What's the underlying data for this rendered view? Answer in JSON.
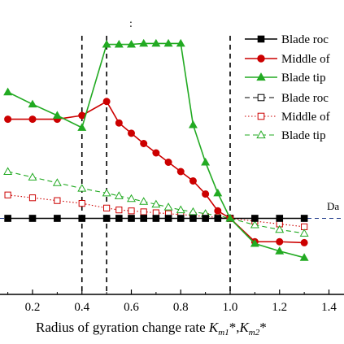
{
  "chart_data": {
    "type": "line",
    "title_mark": ":",
    "xlabel_main": "Radius of gyration change rate ",
    "xlabel_math": "K",
    "xlabel_sub1": "m1",
    "xlabel_mid": "*,",
    "xlabel_sub2": "m2",
    "xlabel_end": "*",
    "xlim": [
      0.08,
      1.43
    ],
    "ylim": [
      -0.5,
      2.1
    ],
    "xticks": [
      "0.2",
      "0.4",
      "0.6",
      "0.8",
      "1.0",
      "1.2",
      "1.4"
    ],
    "xtick_values": [
      0.2,
      0.4,
      0.6,
      0.8,
      1.0,
      1.2,
      1.4
    ],
    "vlines": [
      0.4,
      0.5,
      1.0
    ],
    "annotation": "Da",
    "series": [
      {
        "name": "Blade roc",
        "style": "solid",
        "marker": "square",
        "filled": true,
        "color": "#000000",
        "x": [
          0.1,
          0.2,
          0.3,
          0.4,
          0.5,
          0.55,
          0.6,
          0.65,
          0.7,
          0.75,
          0.8,
          0.85,
          0.9,
          0.95,
          1.0,
          1.1,
          1.2,
          1.3
        ],
        "y": [
          0,
          0,
          0,
          0,
          0,
          0,
          0,
          0,
          0,
          0,
          0,
          0,
          0,
          0,
          0,
          0,
          0,
          0
        ]
      },
      {
        "name": "Middle of",
        "style": "solid",
        "marker": "circle",
        "filled": true,
        "color": "#cc0000",
        "x": [
          0.1,
          0.2,
          0.3,
          0.4,
          0.5,
          0.55,
          0.6,
          0.65,
          0.7,
          0.75,
          0.8,
          0.85,
          0.9,
          0.95,
          1.0,
          1.1,
          1.2,
          1.3
        ],
        "y": [
          1.06,
          1.06,
          1.06,
          1.1,
          1.25,
          1.02,
          0.91,
          0.8,
          0.7,
          0.6,
          0.5,
          0.4,
          0.26,
          0.08,
          0.0,
          -0.25,
          -0.25,
          -0.26
        ]
      },
      {
        "name": "Blade tip",
        "style": "solid",
        "marker": "triangle",
        "filled": true,
        "color": "#22aa22",
        "x": [
          0.1,
          0.2,
          0.3,
          0.4,
          0.5,
          0.55,
          0.6,
          0.65,
          0.7,
          0.75,
          0.8,
          0.85,
          0.9,
          0.95,
          1.0,
          1.1,
          1.2,
          1.3
        ],
        "y": [
          1.35,
          1.22,
          1.1,
          0.97,
          1.86,
          1.86,
          1.86,
          1.87,
          1.87,
          1.87,
          1.87,
          1.0,
          0.6,
          0.27,
          0.0,
          -0.27,
          -0.35,
          -0.42
        ]
      },
      {
        "name": "Blade roc",
        "style": "dashed",
        "marker": "square",
        "filled": false,
        "color": "#000000",
        "x": [
          0.1,
          0.2,
          0.3,
          0.4,
          0.5,
          0.55,
          0.6,
          0.65,
          0.7,
          0.75,
          0.8,
          0.85,
          0.9,
          0.95,
          1.0,
          1.1,
          1.2,
          1.3
        ],
        "y": [
          0,
          0,
          0,
          0,
          0,
          0,
          0,
          0,
          0,
          0,
          0,
          0,
          0,
          0,
          0,
          0,
          0,
          0
        ]
      },
      {
        "name": "Middle of",
        "style": "dotted",
        "marker": "square",
        "filled": false,
        "color": "#cc0000",
        "x": [
          0.1,
          0.2,
          0.3,
          0.4,
          0.5,
          0.55,
          0.6,
          0.65,
          0.7,
          0.75,
          0.8,
          0.85,
          0.9,
          0.95,
          1.0,
          1.1,
          1.2,
          1.3
        ],
        "y": [
          0.25,
          0.22,
          0.19,
          0.16,
          0.11,
          0.09,
          0.08,
          0.07,
          0.06,
          0.05,
          0.04,
          0.03,
          0.02,
          0.01,
          0.0,
          -0.03,
          -0.06,
          -0.09
        ]
      },
      {
        "name": "Blade tip",
        "style": "dashed",
        "marker": "triangle",
        "filled": false,
        "color": "#22aa22",
        "x": [
          0.1,
          0.2,
          0.3,
          0.4,
          0.5,
          0.55,
          0.6,
          0.65,
          0.7,
          0.75,
          0.8,
          0.85,
          0.9,
          0.95,
          1.0,
          1.1,
          1.2,
          1.3
        ],
        "y": [
          0.5,
          0.44,
          0.38,
          0.32,
          0.27,
          0.24,
          0.21,
          0.18,
          0.15,
          0.12,
          0.09,
          0.07,
          0.05,
          0.03,
          0.0,
          -0.07,
          -0.12,
          -0.16
        ]
      }
    ]
  }
}
